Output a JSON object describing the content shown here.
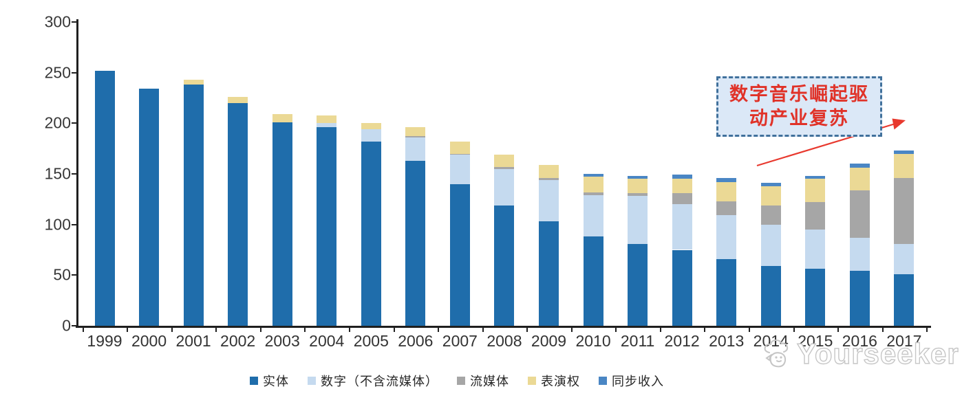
{
  "chart_data": {
    "type": "bar",
    "stacked": true,
    "title": "",
    "xlabel": "",
    "ylabel": "",
    "ylim": [
      0,
      300
    ],
    "ytick_step": 50,
    "grid": false,
    "legend_position": "bottom",
    "categories": [
      "1999",
      "2000",
      "2001",
      "2002",
      "2003",
      "2004",
      "2005",
      "2006",
      "2007",
      "2008",
      "2009",
      "2010",
      "2011",
      "2012",
      "2013",
      "2014",
      "2015",
      "2016",
      "2017"
    ],
    "series": [
      {
        "name": "实体",
        "color": "#1F6DAB",
        "values": [
          252,
          234,
          238,
          220,
          201,
          196,
          182,
          163,
          140,
          119,
          103,
          88,
          81,
          75,
          66,
          59,
          56,
          54,
          51
        ]
      },
      {
        "name": "数字（不含流媒体）",
        "color": "#C5DAEF",
        "values": [
          0,
          0,
          0,
          0,
          0,
          4,
          12,
          23,
          29,
          36,
          41,
          41,
          47,
          45,
          43,
          41,
          39,
          33,
          30
        ]
      },
      {
        "name": "流媒体",
        "color": "#A6A6A6",
        "values": [
          0,
          0,
          0,
          0,
          0,
          0,
          0,
          1,
          1,
          2,
          2,
          3,
          3,
          11,
          14,
          19,
          27,
          47,
          65
        ]
      },
      {
        "name": "表演权",
        "color": "#EBD995",
        "values": [
          0,
          0,
          5,
          6,
          8,
          8,
          6,
          9,
          12,
          12,
          13,
          15,
          14,
          14,
          19,
          19,
          23,
          22,
          24
        ]
      },
      {
        "name": "同步收入",
        "color": "#4A86C4",
        "values": [
          0,
          0,
          0,
          0,
          0,
          0,
          0,
          0,
          0,
          0,
          0,
          3,
          3,
          4,
          4,
          3,
          3,
          4,
          3
        ]
      }
    ]
  },
  "annotation": {
    "line1": "数字音乐崛起驱",
    "line2": "动产业复苏",
    "text_color": "#E03228",
    "box_fill": "#DBE8F7",
    "box_border": "#41719C",
    "arrow_color": "#E8392E"
  },
  "watermark": {
    "text": "Yourseeker",
    "logo": "cloud-face-icon",
    "color": "#C6C6C6"
  }
}
